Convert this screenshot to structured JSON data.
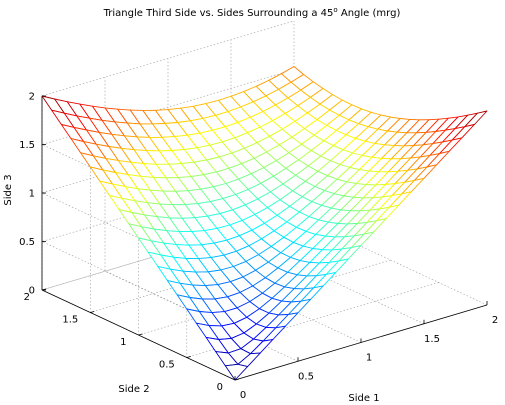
{
  "chart_data": {
    "type": "surface",
    "title": "Triangle Third Side vs. Sides Surrounding a 45",
    "title_superscript": "o",
    "title_tail": " Angle (mrg)",
    "xlabel": "Side 1",
    "ylabel": "Side 2",
    "zlabel": "Side 3",
    "angle_deg": 45,
    "formula": "z = sqrt(x^2 + y^2 - 2*x*y*cos(45°))",
    "x_range": [
      0,
      2
    ],
    "y_range": [
      0,
      2
    ],
    "z_range": [
      0,
      2
    ],
    "grid_steps": 20,
    "x_tick_labels": [
      "0",
      "0.5",
      "1",
      "1.5",
      "2"
    ],
    "y_tick_labels": [
      "0",
      "0.5",
      "1",
      "1.5",
      "2"
    ],
    "z_tick_labels": [
      "0",
      "0.5",
      "1",
      "1.5",
      "2"
    ],
    "x_ticks": [
      0,
      0.5,
      1,
      1.5,
      2
    ],
    "y_ticks": [
      0,
      0.5,
      1,
      1.5,
      2
    ],
    "z_ticks": [
      0,
      0.5,
      1,
      1.5,
      2
    ],
    "colormap": "jet",
    "grid": true
  }
}
